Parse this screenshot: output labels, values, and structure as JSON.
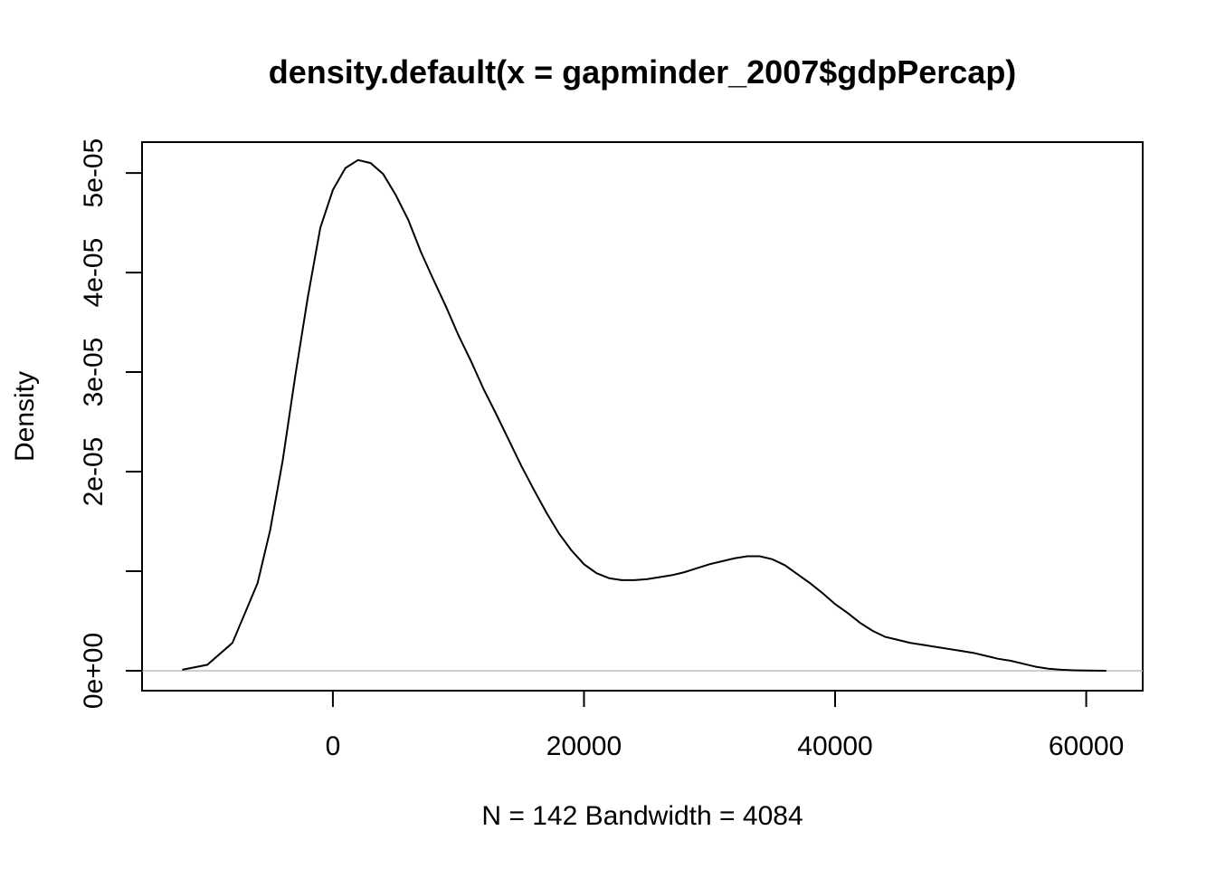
{
  "chart_data": {
    "type": "line",
    "title": "density.default(x = gapminder_2007$gdpPercap)",
    "xlabel": "N = 142   Bandwidth = 4084",
    "ylabel": "Density",
    "x_ticks": [
      0,
      20000,
      40000,
      60000
    ],
    "x_tick_labels": [
      "0",
      "20000",
      "40000",
      "60000"
    ],
    "y_ticks": [
      0,
      1e-05,
      2e-05,
      3e-05,
      4e-05,
      5e-05
    ],
    "y_tick_labels": [
      "0e+00",
      "",
      "2e-05",
      "3e-05",
      "4e-05",
      "5e-05"
    ],
    "xlim": [
      -15200,
      64500
    ],
    "ylim": [
      -2e-06,
      5.31e-05
    ],
    "grid": false,
    "zero_line": true,
    "series": [
      {
        "x": [
          -12000,
          -10000,
          -8000,
          -6000,
          -5000,
          -4000,
          -3000,
          -2000,
          -1000,
          0,
          1000,
          2000,
          3000,
          4000,
          5000,
          6000,
          7000,
          8000,
          9000,
          10000,
          11000,
          12000,
          13000,
          14000,
          15000,
          16000,
          17000,
          18000,
          19000,
          20000,
          21000,
          22000,
          23000,
          24000,
          25000,
          26000,
          27000,
          28000,
          29000,
          30000,
          31000,
          32000,
          33000,
          34000,
          35000,
          36000,
          37000,
          38000,
          39000,
          40000,
          41000,
          42000,
          43000,
          44000,
          45000,
          46000,
          47000,
          48000,
          49000,
          50000,
          51000,
          52000,
          53000,
          54000,
          55000,
          56000,
          57000,
          58000,
          59000,
          60000,
          61600
        ],
        "y": [
          1e-07,
          6e-07,
          2.8e-06,
          8.8e-06,
          1.41e-05,
          2.11e-05,
          2.96e-05,
          3.75e-05,
          4.45e-05,
          4.83e-05,
          5.05e-05,
          5.13e-05,
          5.1e-05,
          4.99e-05,
          4.78e-05,
          4.53e-05,
          4.21e-05,
          3.93e-05,
          3.66e-05,
          3.37e-05,
          3.11e-05,
          2.83e-05,
          2.58e-05,
          2.32e-05,
          2.06e-05,
          1.82e-05,
          1.59e-05,
          1.38e-05,
          1.21e-05,
          1.07e-05,
          9.8e-06,
          9.3e-06,
          9.1e-06,
          9.1e-06,
          9.2e-06,
          9.4e-06,
          9.6e-06,
          9.9e-06,
          1.03e-05,
          1.07e-05,
          1.1e-05,
          1.13e-05,
          1.15e-05,
          1.15e-05,
          1.12e-05,
          1.06e-05,
          9.7e-06,
          8.8e-06,
          7.8e-06,
          6.7e-06,
          5.8e-06,
          4.8e-06,
          4e-06,
          3.4e-06,
          3.1e-06,
          2.8e-06,
          2.6e-06,
          2.4e-06,
          2.2e-06,
          2e-06,
          1.8e-06,
          1.5e-06,
          1.2e-06,
          1e-06,
          7e-07,
          4e-07,
          2e-07,
          1e-07,
          5e-08,
          2e-08,
          0
        ]
      }
    ]
  }
}
